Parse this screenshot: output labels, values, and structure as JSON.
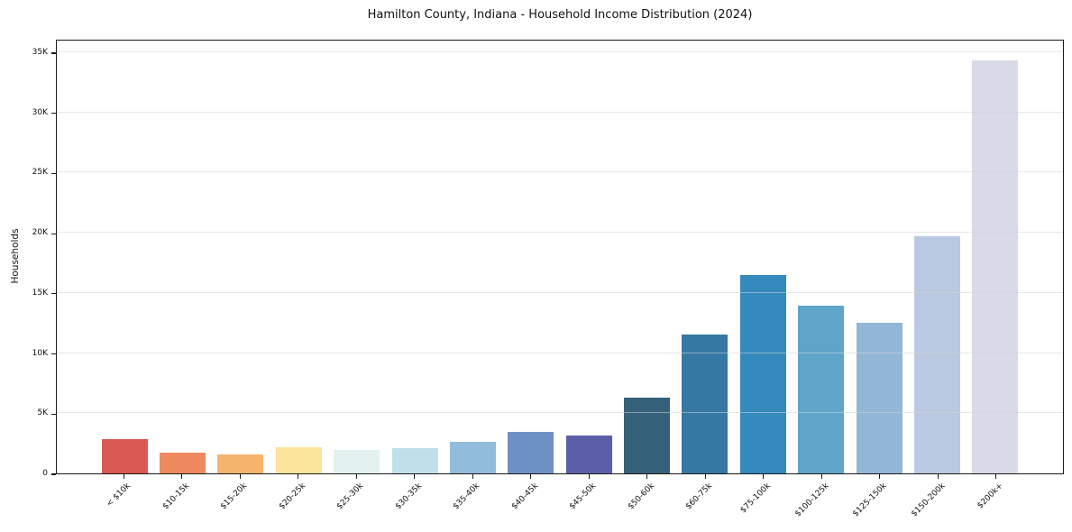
{
  "title": "Hamilton County, Indiana - Household Income Distribution (2024)",
  "ylabel": "Households",
  "chart_data": {
    "type": "bar",
    "title": "Hamilton County, Indiana - Household Income Distribution (2024)",
    "xlabel": "",
    "ylabel": "Households",
    "categories": [
      "< $10k",
      "$10-15k",
      "$15-20k",
      "$20-25k",
      "$25-30k",
      "$30-35k",
      "$35-40k",
      "$40-45k",
      "$45-50k",
      "$50-60k",
      "$60-75k",
      "$75-100k",
      "$100-125k",
      "$125-150k",
      "$150-200k",
      "$200k+"
    ],
    "values": [
      2820,
      1720,
      1610,
      2200,
      1950,
      2100,
      2650,
      3420,
      3170,
      6320,
      11550,
      16500,
      13950,
      12550,
      19700,
      34350
    ],
    "bar_colors": [
      "#d95853",
      "#ef8a60",
      "#f6b36e",
      "#fbe49c",
      "#e4f1f1",
      "#bfe0eb",
      "#91bcdb",
      "#6e91c5",
      "#5b5fa9",
      "#36617b",
      "#3578a4",
      "#3489bd",
      "#5fa5c9",
      "#92b6d5",
      "#bac9e2",
      "#d8dae7"
    ],
    "ylim": [
      0,
      36120
    ],
    "grid": true,
    "legend": false,
    "yticks": [
      {
        "value": 0,
        "label": "0"
      },
      {
        "value": 5000,
        "label": "5K"
      },
      {
        "value": 10000,
        "label": "10K"
      },
      {
        "value": 15000,
        "label": "15K"
      },
      {
        "value": 20000,
        "label": "20K"
      },
      {
        "value": 25000,
        "label": "25K"
      },
      {
        "value": 30000,
        "label": "30K"
      },
      {
        "value": 35000,
        "label": "35K"
      }
    ]
  }
}
